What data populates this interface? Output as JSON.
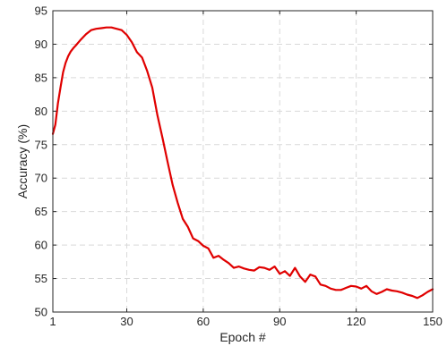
{
  "chart_data": {
    "type": "line",
    "title": "",
    "xlabel": "Epoch #",
    "ylabel": "Accuracy (%)",
    "xlim": [
      1,
      150
    ],
    "ylim": [
      50,
      95
    ],
    "xticks": [
      1,
      30,
      60,
      90,
      120,
      150
    ],
    "yticks": [
      50,
      55,
      60,
      65,
      70,
      75,
      80,
      85,
      90,
      95
    ],
    "grid": true,
    "series": [
      {
        "color": "#e00000",
        "x": [
          1,
          2,
          3,
          4,
          5,
          6,
          7,
          8,
          9,
          10,
          12,
          14,
          16,
          18,
          20,
          22,
          24,
          26,
          28,
          30,
          32,
          34,
          36,
          38,
          40,
          42,
          44,
          46,
          48,
          50,
          52,
          54,
          56,
          58,
          60,
          62,
          64,
          66,
          68,
          70,
          72,
          74,
          76,
          78,
          80,
          82,
          84,
          86,
          88,
          90,
          92,
          94,
          96,
          98,
          100,
          102,
          104,
          106,
          108,
          110,
          112,
          114,
          116,
          118,
          120,
          122,
          124,
          126,
          128,
          130,
          132,
          134,
          136,
          138,
          140,
          142,
          144,
          146,
          148,
          150
        ],
        "y": [
          76.6,
          78.0,
          81.2,
          83.5,
          85.8,
          87.2,
          88.2,
          88.9,
          89.4,
          89.8,
          90.7,
          91.5,
          92.1,
          92.3,
          92.4,
          92.5,
          92.5,
          92.3,
          92.1,
          91.4,
          90.3,
          88.8,
          88.0,
          86.0,
          83.5,
          79.4,
          76.0,
          72.4,
          69.0,
          66.3,
          63.9,
          62.7,
          61.0,
          60.6,
          59.9,
          59.5,
          58.1,
          58.4,
          57.8,
          57.3,
          56.6,
          56.8,
          56.5,
          56.3,
          56.2,
          56.7,
          56.6,
          56.3,
          56.8,
          55.7,
          56.1,
          55.4,
          56.6,
          55.3,
          54.5,
          55.6,
          55.3,
          54.1,
          53.9,
          53.5,
          53.3,
          53.3,
          53.6,
          53.9,
          53.8,
          53.5,
          53.9,
          53.1,
          52.7,
          53.0,
          53.4,
          53.2,
          53.1,
          52.9,
          52.6,
          52.4,
          52.1,
          52.5,
          53.0,
          53.4
        ]
      }
    ]
  }
}
